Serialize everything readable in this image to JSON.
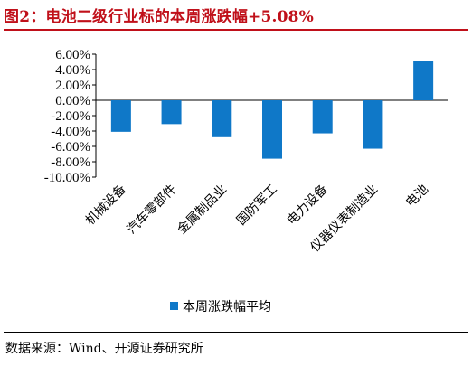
{
  "title": "图2：电池二级行业标的本周涨跌幅+5.08%",
  "source": "数据来源：Wind、开源证券研究所",
  "colors": {
    "title": "#c0101a",
    "bar": "#0f78c8"
  },
  "chart_data": {
    "type": "bar",
    "categories": [
      "机械设备",
      "汽车零部件",
      "金属制品业",
      "国防军工",
      "电力设备",
      "仪器仪表制造业",
      "电池"
    ],
    "series": [
      {
        "name": "本周涨跌幅平均",
        "values": [
          -4.1,
          -3.1,
          -4.8,
          -7.6,
          -4.3,
          -6.3,
          5.08
        ]
      }
    ],
    "ylim": [
      -10,
      6
    ],
    "yticks": [
      6,
      4,
      2,
      0,
      -2,
      -4,
      -6,
      -8,
      -10
    ],
    "ytick_labels": [
      "6.00%",
      "4.00%",
      "2.00%",
      "0.00%",
      "-2.00%",
      "-4.00%",
      "-6.00%",
      "-8.00%",
      "-10.00%"
    ],
    "legend_position": "bottom",
    "grid": false
  }
}
